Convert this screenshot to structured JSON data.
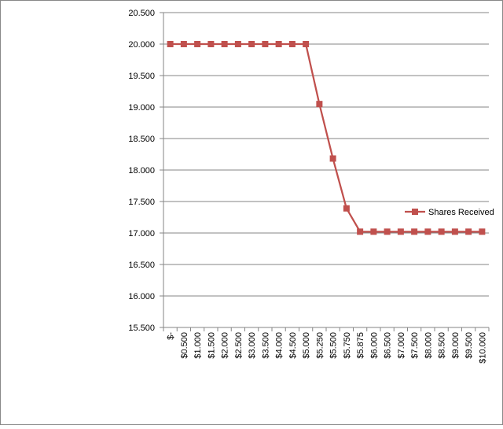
{
  "chart_data": {
    "type": "line",
    "categories": [
      "$-",
      "$0.500",
      "$1.000",
      "$1.500",
      "$2.000",
      "$2.500",
      "$3.000",
      "$3.500",
      "$4.000",
      "$4.500",
      "$5.000",
      "$5.250",
      "$5.500",
      "$5.750",
      "$5.875",
      "$6.000",
      "$6.500",
      "$7.000",
      "$7.500",
      "$8.000",
      "$8.500",
      "$9.000",
      "$9.500",
      "$10.000"
    ],
    "series": [
      {
        "name": "Shares Received",
        "color": "#c0504d",
        "values": [
          20,
          20,
          20,
          20,
          20,
          20,
          20,
          20,
          20,
          20,
          20,
          19.048,
          18.182,
          17.391,
          17.021,
          17.021,
          17.021,
          17.021,
          17.021,
          17.021,
          17.021,
          17.021,
          17.021,
          17.021
        ]
      }
    ],
    "ylim": [
      15.5,
      20.5
    ],
    "yticks": [
      {
        "value": 15.5,
        "label": "15.500"
      },
      {
        "value": 16,
        "label": "16.000"
      },
      {
        "value": 16.5,
        "label": "16.500"
      },
      {
        "value": 17,
        "label": "17.000"
      },
      {
        "value": 17.5,
        "label": "17.500"
      },
      {
        "value": 18,
        "label": "18.000"
      },
      {
        "value": 18.5,
        "label": "18.500"
      },
      {
        "value": 19,
        "label": "19.000"
      },
      {
        "value": 19.5,
        "label": "19.500"
      },
      {
        "value": 20,
        "label": "20.000"
      },
      {
        "value": 20.5,
        "label": "20.500"
      }
    ],
    "grid": true,
    "legend": "right"
  }
}
